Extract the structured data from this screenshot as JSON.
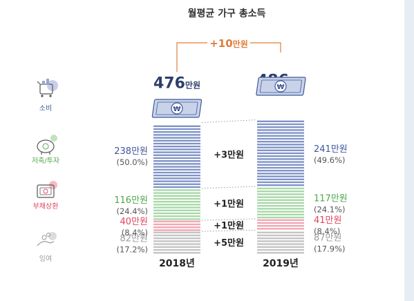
{
  "chart_data": {
    "type": "bar",
    "stacked": true,
    "title": "월평균 가구 총소득",
    "categories": [
      "2018년",
      "2019년"
    ],
    "unit": "만원",
    "totals": [
      476,
      486
    ],
    "total_change": "+10",
    "series": [
      {
        "name": "잉여",
        "values": [
          82,
          87
        ],
        "labels": [
          "82만원",
          "87만원"
        ],
        "percents": [
          "(17.2%)",
          "(17.9%)"
        ],
        "change": "+5만원",
        "color": "#c4c4c4"
      },
      {
        "name": "부채상환",
        "values": [
          40,
          41
        ],
        "labels": [
          "40만원",
          "41만원"
        ],
        "percents": [
          "(8.4%)",
          "(8.4%)"
        ],
        "change": "+1만원",
        "color": "#f2a6b3"
      },
      {
        "name": "저축/투자",
        "values": [
          116,
          117
        ],
        "labels": [
          "116만원",
          "117만원"
        ],
        "percents": [
          "(24.4%)",
          "(24.1%)"
        ],
        "change": "+1만원",
        "color": "#a8d8a8"
      },
      {
        "name": "소비",
        "values": [
          238,
          241
        ],
        "labels": [
          "238만원",
          "241만원"
        ],
        "percents": [
          "(50.0%)",
          "(49.6%)"
        ],
        "change": "+3만원",
        "color": "#7f93c7"
      }
    ],
    "label_colors": {
      "잉여": "#9a9a9a",
      "부채상환": "#e0455f",
      "저축/투자": "#4ea64a",
      "소비": "#3f5798"
    },
    "accent": "#e07b39",
    "legend_position": "left",
    "grid": false
  }
}
